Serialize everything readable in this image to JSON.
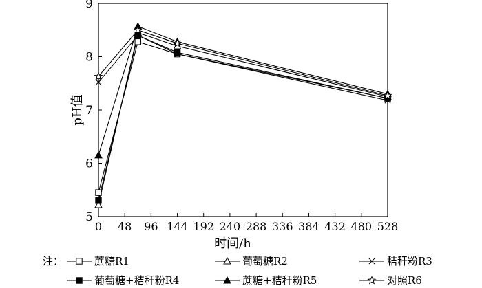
{
  "chart_data": {
    "type": "line",
    "xlabel": "时间/h",
    "ylabel": "pH值",
    "xlim": [
      0,
      528
    ],
    "ylim": [
      5,
      9
    ],
    "xticks": [
      0,
      48,
      96,
      144,
      192,
      240,
      288,
      336,
      384,
      432,
      480,
      528
    ],
    "yticks": [
      5,
      6,
      7,
      8,
      9
    ],
    "x": [
      0,
      72,
      144,
      528
    ],
    "series": [
      {
        "name": "蔗糖R1",
        "marker": "open-square",
        "values": [
          5.45,
          8.28,
          8.05,
          7.22
        ]
      },
      {
        "name": "葡萄糖R2",
        "marker": "open-triangle",
        "values": [
          5.22,
          8.45,
          8.2,
          7.25
        ]
      },
      {
        "name": "秸秆粉R3",
        "marker": "cross",
        "values": [
          7.52,
          8.4,
          8.05,
          7.18
        ]
      },
      {
        "name": "葡萄糖+秸秆粉R4",
        "marker": "filled-square",
        "values": [
          5.3,
          8.4,
          8.08,
          7.22
        ]
      },
      {
        "name": "蔗糖+秸秆粉R5",
        "marker": "filled-triangle",
        "values": [
          6.15,
          8.57,
          8.28,
          7.3
        ]
      },
      {
        "name": "对照R6",
        "marker": "open-star",
        "values": [
          7.63,
          8.5,
          8.25,
          7.27
        ]
      }
    ],
    "legend_prefix": "注：",
    "grid": false,
    "legend_position": "bottom"
  }
}
